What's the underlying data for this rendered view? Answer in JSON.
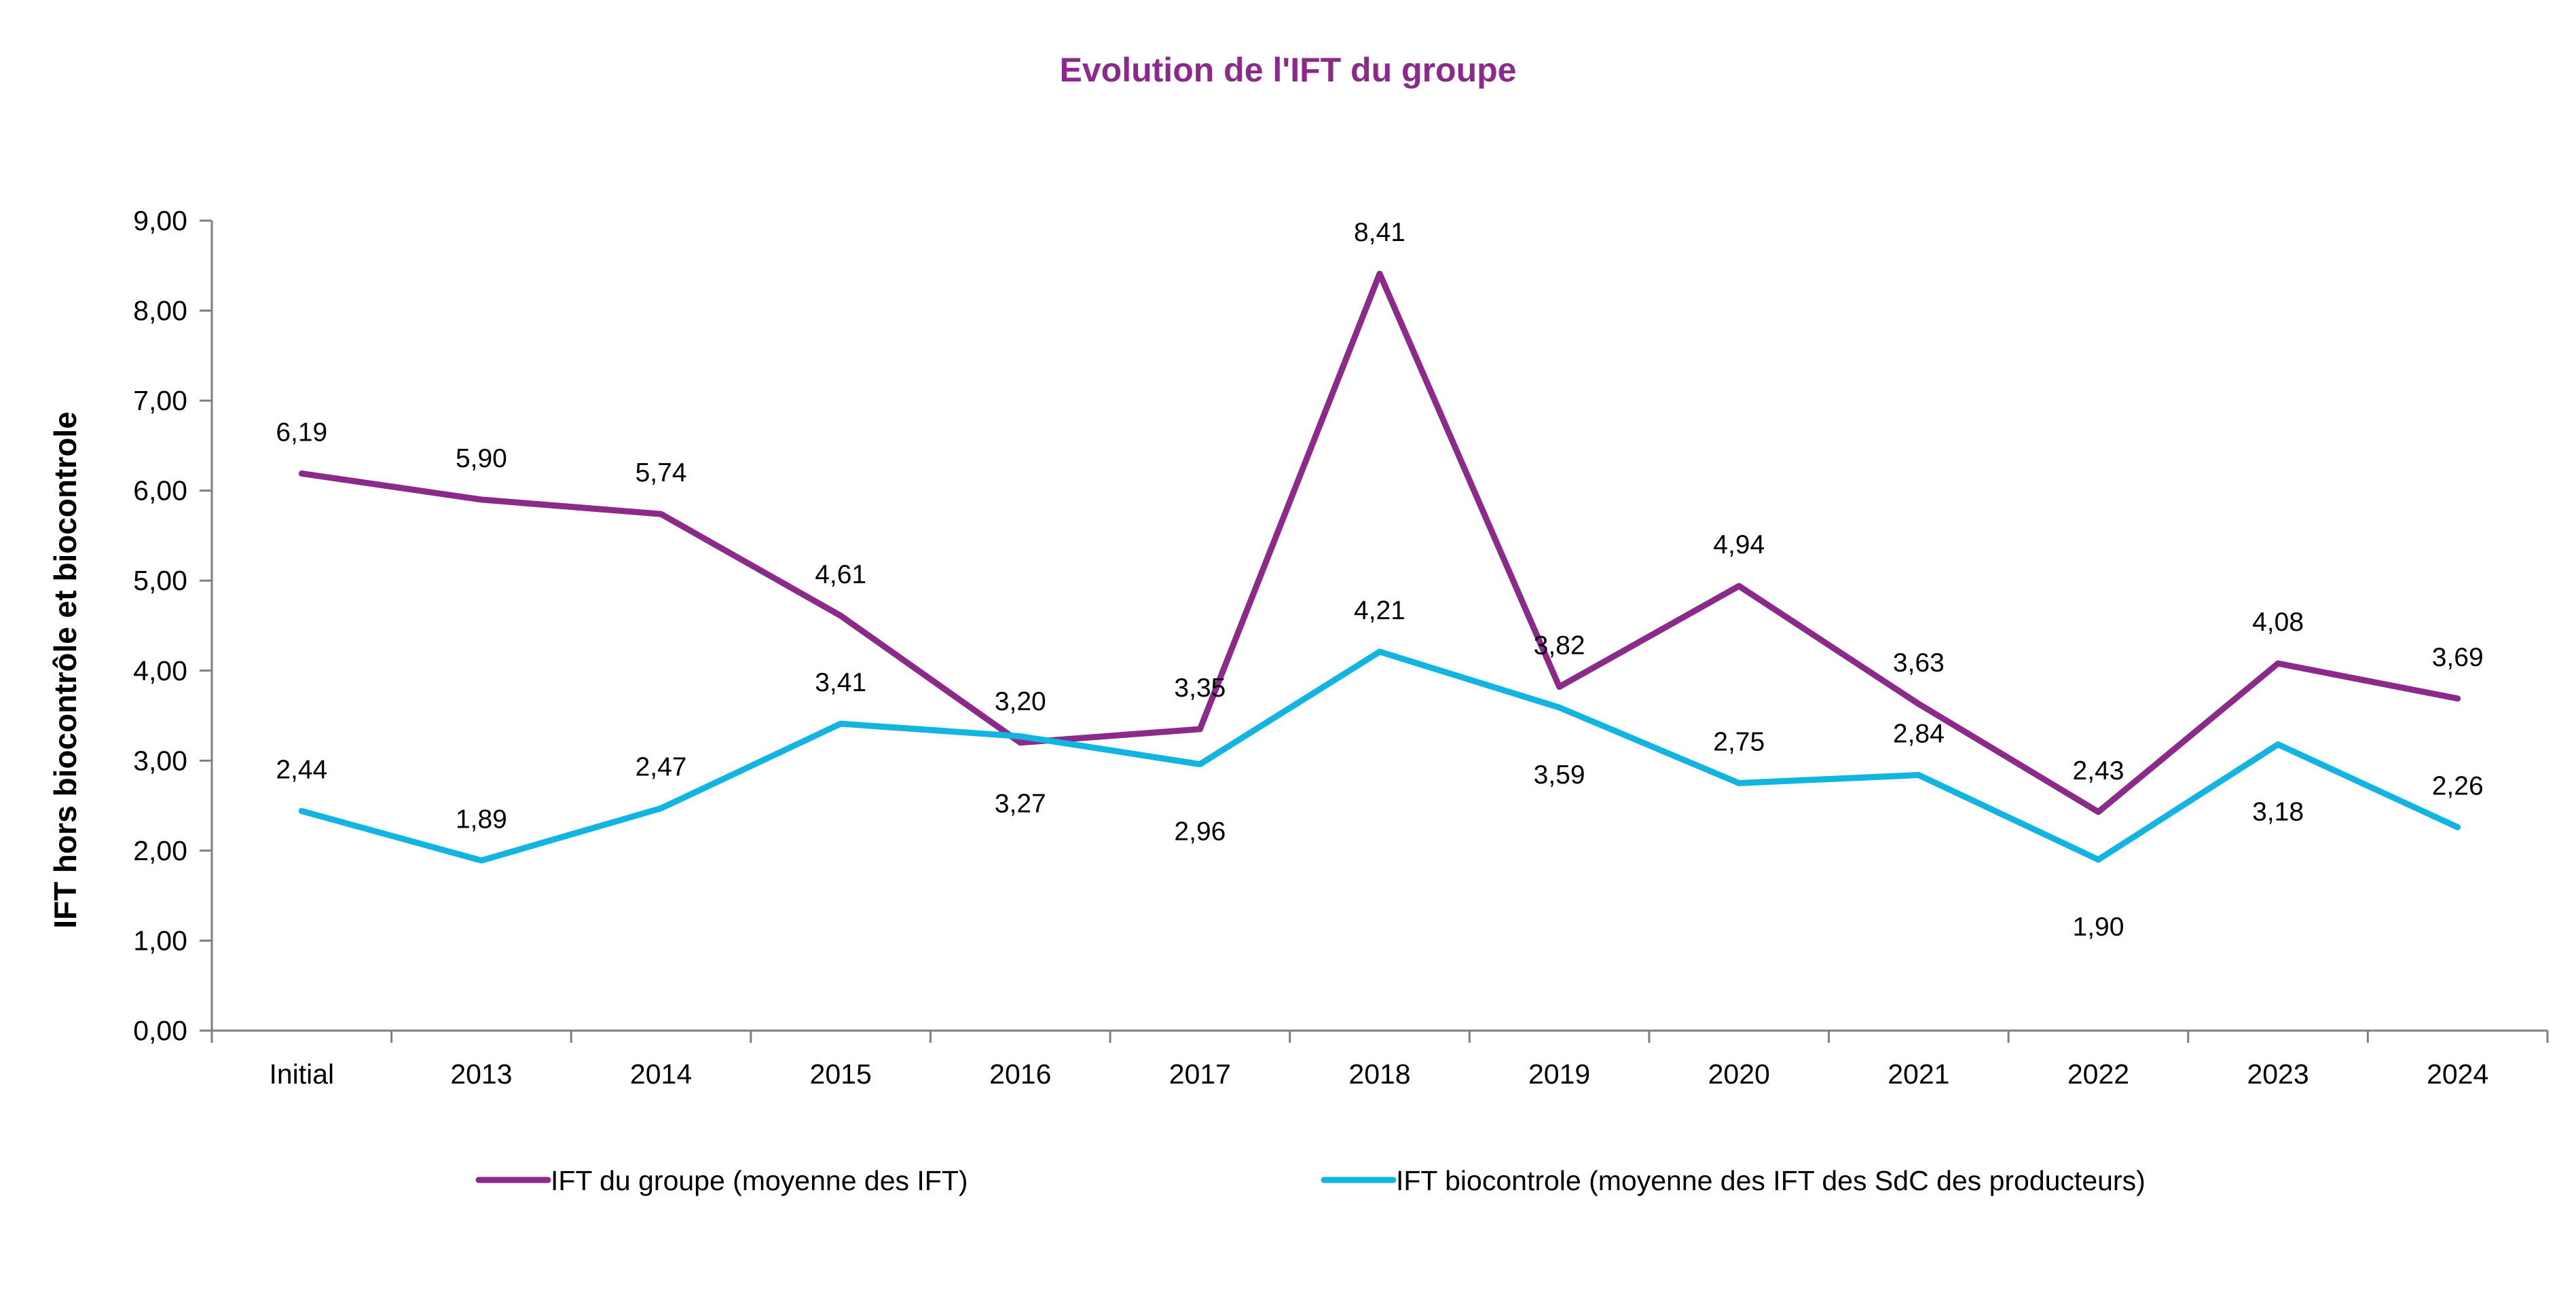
{
  "chart_data": {
    "type": "line",
    "title": "Evolution de l'IFT du groupe",
    "xlabel": "",
    "ylabel": "IFT  hors biocontrôle et biocontrole",
    "ylim": [
      0,
      9
    ],
    "ytick_step": 1,
    "ytick_labels": [
      "0,00",
      "1,00",
      "2,00",
      "3,00",
      "4,00",
      "5,00",
      "6,00",
      "7,00",
      "8,00",
      "9,00"
    ],
    "grid": false,
    "legend_position": "bottom",
    "categories": [
      "Initial",
      "2013",
      "2014",
      "2015",
      "2016",
      "2017",
      "2018",
      "2019",
      "2020",
      "2021",
      "2022",
      "2023",
      "2024"
    ],
    "series": [
      {
        "name": "IFT du groupe (moyenne des IFT)",
        "color": "#8B2A8B",
        "values": [
          6.19,
          5.9,
          5.74,
          4.61,
          3.2,
          3.35,
          8.41,
          3.82,
          4.94,
          3.63,
          2.43,
          4.08,
          3.69
        ],
        "labels": [
          "6,19",
          "5,90",
          "5,74",
          "4,61",
          "3,20",
          "3,35",
          "8,41",
          "3,82",
          "4,94",
          "3,63",
          "2,43",
          "4,08",
          "3,69"
        ],
        "label_positions": [
          "above",
          "above",
          "above",
          "above",
          "above",
          "above",
          "above",
          "above",
          "above",
          "above",
          "above",
          "above",
          "above"
        ]
      },
      {
        "name": "IFT biocontrole (moyenne des IFT des SdC des producteurs)",
        "color": "#12B4E2",
        "values": [
          2.44,
          1.89,
          2.47,
          3.41,
          3.27,
          2.96,
          4.21,
          3.59,
          2.75,
          2.84,
          1.9,
          3.18,
          2.26
        ],
        "labels": [
          "2,44",
          "1,89",
          "2,47",
          "3,41",
          "3,27",
          "2,96",
          "4,21",
          "3,59",
          "2,75",
          "2,84",
          "1,90",
          "3,18",
          "2,26"
        ],
        "label_positions": [
          "above",
          "above",
          "above",
          "above",
          "below",
          "below",
          "above",
          "below",
          "above",
          "above",
          "below",
          "below",
          "above"
        ]
      }
    ]
  },
  "colors": {
    "title": "#8B2A8B",
    "axis": "#7f7f7f",
    "text": "#000000"
  }
}
